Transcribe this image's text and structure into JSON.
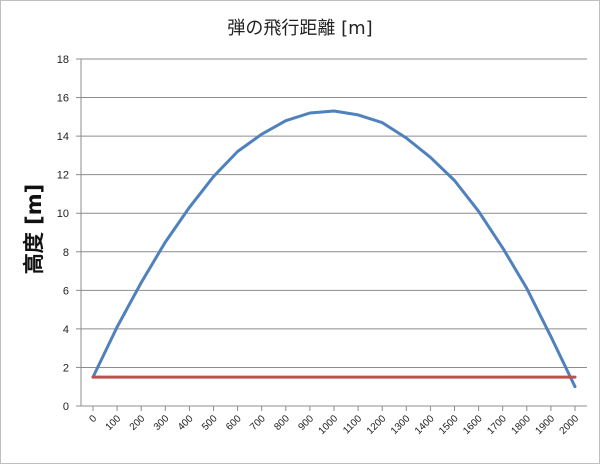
{
  "chart_data": {
    "type": "line",
    "title": "弾の飛行距離 [m]",
    "xlabel": "",
    "ylabel": "高度 [m]",
    "ylim": [
      0,
      18
    ],
    "yticks": [
      0,
      2,
      4,
      6,
      8,
      10,
      12,
      14,
      16,
      18
    ],
    "xticks": [
      0,
      100,
      200,
      300,
      400,
      500,
      600,
      700,
      800,
      900,
      1000,
      1100,
      1200,
      1300,
      1400,
      1500,
      1600,
      1700,
      1800,
      1900,
      2000
    ],
    "grid": "horizontal",
    "legend": "none",
    "series": [
      {
        "color": "#4f81bd",
        "x": [
          0,
          100,
          200,
          300,
          400,
          500,
          600,
          700,
          800,
          900,
          1000,
          1100,
          1200,
          1300,
          1400,
          1500,
          1600,
          1700,
          1800,
          1900,
          2000
        ],
        "y": [
          1.5,
          4.1,
          6.4,
          8.5,
          10.3,
          11.9,
          13.2,
          14.1,
          14.8,
          15.2,
          15.3,
          15.1,
          14.7,
          13.9,
          12.9,
          11.7,
          10.1,
          8.2,
          6.1,
          3.6,
          1.0
        ]
      },
      {
        "color": "#c0504d",
        "x": [
          0,
          2000
        ],
        "y": [
          1.5,
          1.5
        ]
      }
    ]
  }
}
